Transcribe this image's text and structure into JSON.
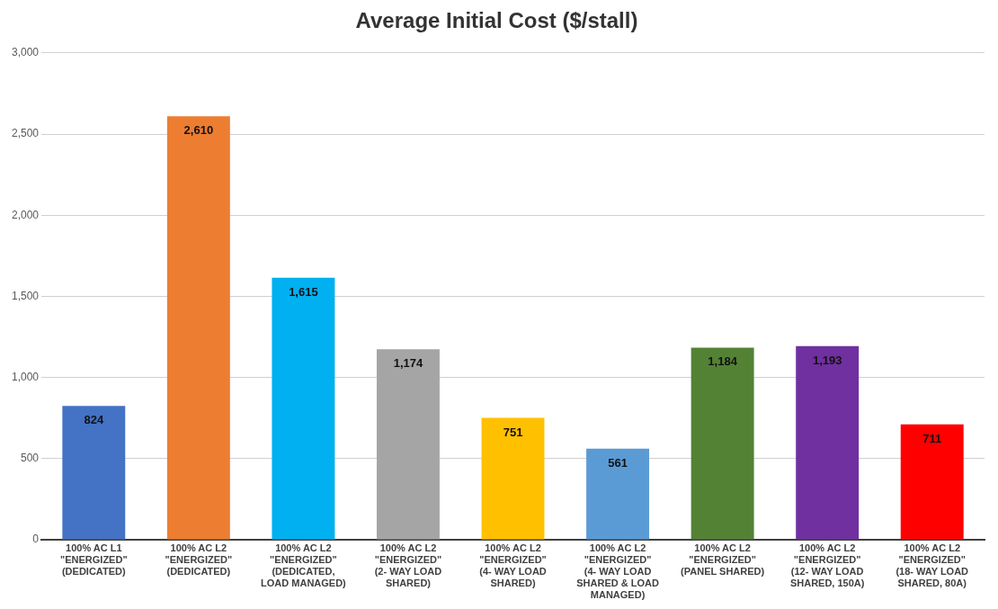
{
  "chart_data": {
    "type": "bar",
    "title": "Average Initial Cost ($/stall)",
    "categories": [
      "100% AC L1 \"ENERGIZED\" (DEDICATED)",
      "100% AC L2 \"ENERGIZED\" (DEDICATED)",
      "100% AC L2 \"ENERGIZED\" (DEDICATED, LOAD MANAGED)",
      "100% AC L2 \"ENERGIZED\" (2- WAY LOAD SHARED)",
      "100% AC L2 \"ENERGIZED\" (4- WAY LOAD SHARED)",
      "100% AC L2 \"ENERGIZED\" (4- WAY LOAD SHARED & LOAD MANAGED)",
      "100% AC L2 \"ENERGIZED\" (PANEL SHARED)",
      "100% AC L2 \"ENERGIZED\" (12- WAY LOAD SHARED, 150A)",
      "100% AC L2 \"ENERGIZED\" (18- WAY LOAD SHARED, 80A)"
    ],
    "values": [
      824,
      2610,
      1615,
      1174,
      751,
      561,
      1184,
      1193,
      711
    ],
    "value_labels": [
      "824",
      "2,610",
      "1,615",
      "1,174",
      "751",
      "561",
      "1,184",
      "1,193",
      "711"
    ],
    "colors": [
      "#4472c4",
      "#ed7d31",
      "#00b0f0",
      "#a5a5a5",
      "#ffc000",
      "#5b9bd5",
      "#548235",
      "#7030a0",
      "#ff0000"
    ],
    "ylim": [
      0,
      3000
    ],
    "yticks": [
      0,
      500,
      {
        "value": 1000,
        "label": "1,000"
      },
      {
        "value": 1500,
        "label": "1,500"
      },
      {
        "value": 2000,
        "label": "2,000"
      },
      {
        "value": 2500,
        "label": "2,500"
      },
      {
        "value": 3000,
        "label": "3,000"
      }
    ],
    "grid": "y"
  }
}
